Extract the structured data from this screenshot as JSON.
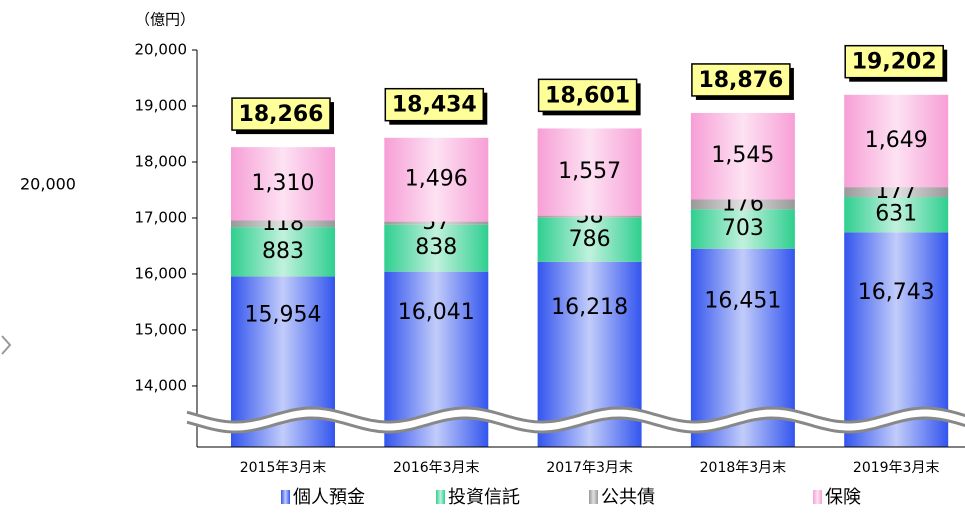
{
  "chart_data": {
    "type": "stacked_bar",
    "unit_label": "（億円）",
    "side_label": "20,000",
    "categories": [
      "2015年3月末",
      "2016年3月末",
      "2017年3月末",
      "2018年3月末",
      "2019年3月末"
    ],
    "series": [
      {
        "name": "個人預金",
        "color": "#3355ee",
        "values": [
          15954,
          16041,
          16218,
          16451,
          16743
        ],
        "value_labels": [
          "15,954",
          "16,041",
          "16,218",
          "16,451",
          "16,743"
        ]
      },
      {
        "name": "投資信託",
        "color": "#2fcf8f",
        "values": [
          883,
          838,
          786,
          703,
          631
        ],
        "value_labels": [
          "883",
          "838",
          "786",
          "703",
          "631"
        ]
      },
      {
        "name": "公共債",
        "color": "#999999",
        "values": [
          118,
          57,
          38,
          176,
          177
        ],
        "value_labels": [
          "118",
          "57",
          "38",
          "176",
          "177"
        ]
      },
      {
        "name": "保険",
        "color": "#f79fd6",
        "values": [
          1310,
          1496,
          1557,
          1545,
          1649
        ],
        "value_labels": [
          "1,310",
          "1,496",
          "1,557",
          "1,545",
          "1,649"
        ]
      }
    ],
    "totals": [
      18266,
      18434,
      18601,
      18876,
      19202
    ],
    "total_labels": [
      "18,266",
      "18,434",
      "18,601",
      "18,876",
      "19,202"
    ],
    "ylim": [
      12910,
      20000
    ],
    "yticks": [
      {
        "value": 14000,
        "label": "14,000"
      },
      {
        "value": 15000,
        "label": "15,000"
      },
      {
        "value": 16000,
        "label": "16,000"
      },
      {
        "value": 17000,
        "label": "17,000"
      },
      {
        "value": 18000,
        "label": "18,000"
      },
      {
        "value": 19000,
        "label": "19,000"
      },
      {
        "value": 20000,
        "label": "20,000"
      }
    ],
    "axis_break": true
  }
}
